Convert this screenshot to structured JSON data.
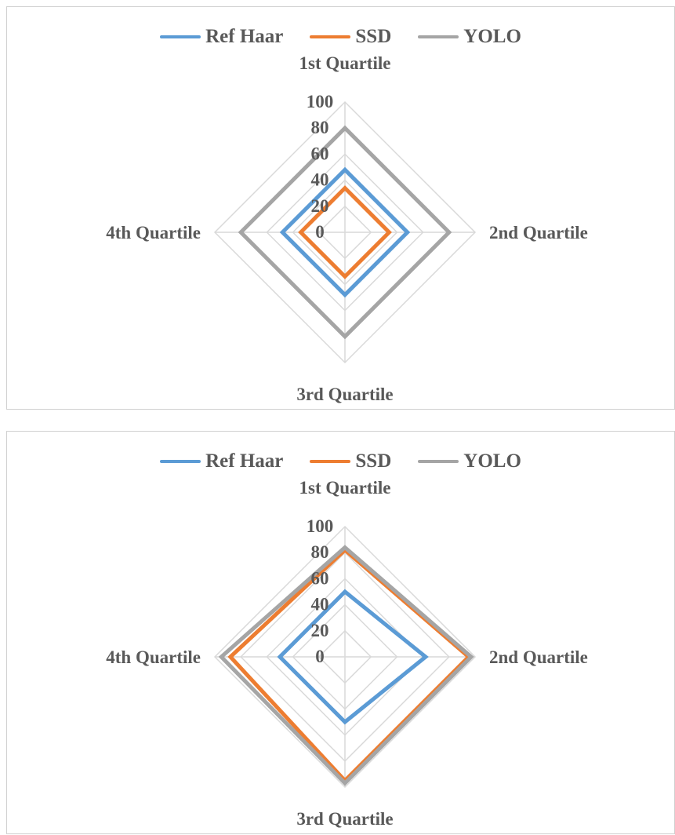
{
  "chart_data": [
    {
      "type": "radar",
      "categories": [
        "1st Quartile",
        "2nd Quartile",
        "3rd Quartile",
        "4th Quartile"
      ],
      "r_ticks": [
        "0",
        "20",
        "40",
        "60",
        "80",
        "100"
      ],
      "rlim": [
        0,
        100
      ],
      "grid": true,
      "legend_position": "top",
      "series": [
        {
          "name": "Ref Haar",
          "color": "#5B9BD5",
          "values": [
            48,
            48,
            48,
            48
          ]
        },
        {
          "name": "SSD",
          "color": "#ED7D31",
          "values": [
            34,
            34,
            34,
            34
          ]
        },
        {
          "name": "YOLO",
          "color": "#A5A5A5",
          "values": [
            80,
            80,
            80,
            80
          ]
        }
      ]
    },
    {
      "type": "radar",
      "categories": [
        "1st Quartile",
        "2nd Quartile",
        "3rd Quartile",
        "4th Quartile"
      ],
      "r_ticks": [
        "0",
        "20",
        "40",
        "60",
        "80",
        "100"
      ],
      "rlim": [
        0,
        100
      ],
      "grid": true,
      "legend_position": "top",
      "series": [
        {
          "name": "Ref Haar",
          "color": "#5B9BD5",
          "values": [
            50,
            62,
            50,
            50
          ]
        },
        {
          "name": "SSD",
          "color": "#ED7D31",
          "values": [
            82,
            95,
            95,
            88
          ]
        },
        {
          "name": "YOLO",
          "color": "#A5A5A5",
          "values": [
            84,
            97,
            97,
            95
          ]
        }
      ]
    }
  ]
}
